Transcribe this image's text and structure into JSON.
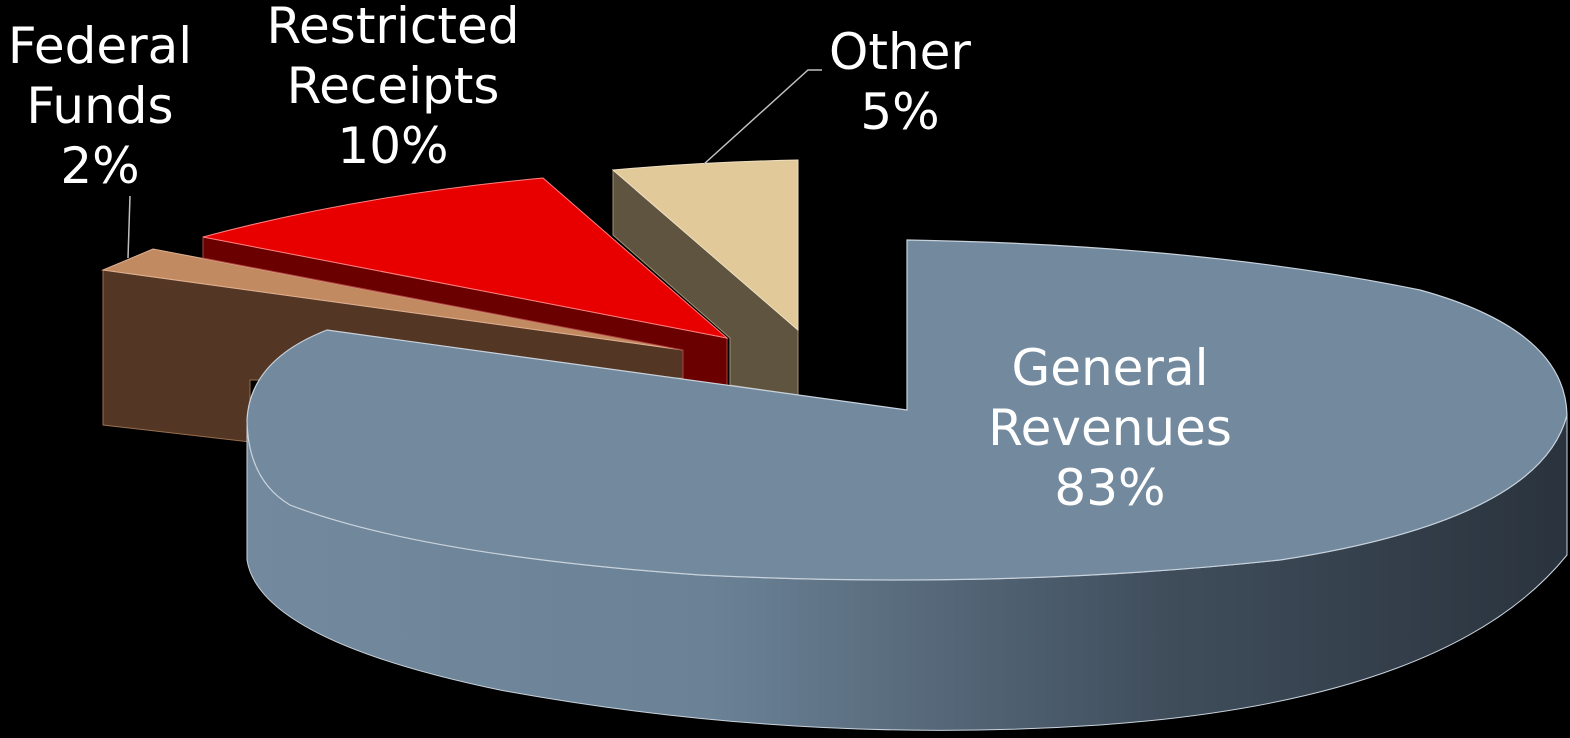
{
  "chart_data": {
    "type": "pie",
    "style": "3d-exploded",
    "slices": [
      {
        "name": "General Revenues",
        "name_lines": [
          "General",
          "Revenues"
        ],
        "percent_label": "83%",
        "value": 83,
        "color": "#72899e"
      },
      {
        "name": "Federal Funds",
        "name_lines": [
          "Federal",
          "Funds"
        ],
        "percent_label": "2%",
        "value": 2,
        "color": "#c18a60"
      },
      {
        "name": "Restricted Receipts",
        "name_lines": [
          "Restricted",
          "Receipts"
        ],
        "percent_label": "10%",
        "value": 10,
        "color": "#e80000"
      },
      {
        "name": "Other",
        "name_lines": [
          "Other"
        ],
        "percent_label": "5%",
        "value": 5,
        "color": "#e1c99a"
      }
    ],
    "colors": {
      "background": "#000000",
      "general_side_dark": "#2f3944",
      "federal_side": "#533624",
      "restricted_side": "#6a0000",
      "other_side": "#5f5440"
    }
  }
}
